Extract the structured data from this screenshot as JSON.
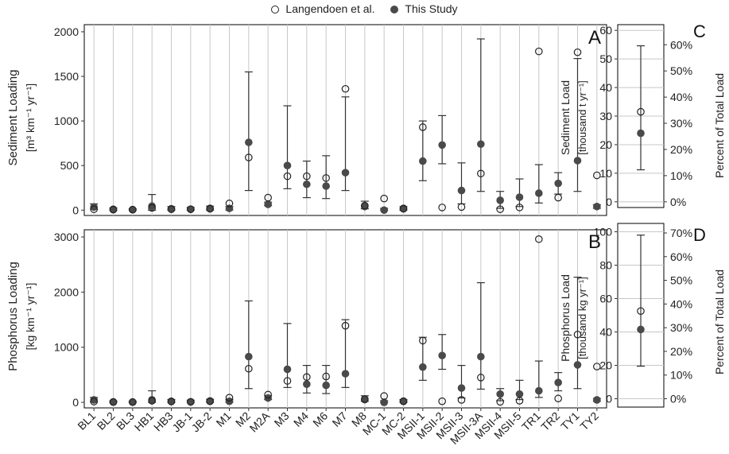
{
  "legend": {
    "open_label": "Langendoen et al.",
    "filled_label": "This Study"
  },
  "panels": {
    "A": {
      "letter": "A",
      "ylabel_line1": "Sediment Loading",
      "ylabel_line2": "[m³ km⁻¹ yr⁻¹]"
    },
    "B": {
      "letter": "B",
      "ylabel_line1": "Phosphorus Loading",
      "ylabel_line2": "[kg km⁻¹ yr⁻¹]"
    },
    "C": {
      "letter": "C",
      "ylabel_line1": "Sediment Load",
      "ylabel_line2": "[thousand t yr⁻¹]",
      "ylabel_right": "Percent of Total Load"
    },
    "D": {
      "letter": "D",
      "ylabel_line1": "Phosphorus Load",
      "ylabel_line2": "[thousand kg yr⁻¹]",
      "ylabel_right": "Percent of Total Load"
    }
  },
  "chart_data": [
    {
      "panel": "A",
      "type": "scatter",
      "categories": [
        "BL1",
        "BL2",
        "BL3",
        "HB1",
        "HB3",
        "JB-1",
        "JB-2",
        "M1",
        "M2",
        "M2A",
        "M3",
        "M4",
        "M6",
        "M7",
        "M8",
        "MC-1",
        "MC-2",
        "MSII-1",
        "MSII-2",
        "MSII-3",
        "MSII-3A",
        "MSII-4",
        "MSII-5",
        "TR1",
        "TR2",
        "TY1",
        "TY2"
      ],
      "ylim": [
        -60,
        2080
      ],
      "yticks": [
        0,
        500,
        1000,
        1500,
        2000
      ],
      "series": [
        {
          "name": "Langendoen et al.",
          "marker": "open",
          "values": [
            10,
            5,
            5,
            25,
            10,
            10,
            15,
            75,
            590,
            140,
            380,
            380,
            360,
            1360,
            50,
            130,
            15,
            930,
            30,
            35,
            410,
            10,
            30,
            1780,
            140,
            1770,
            390
          ]
        },
        {
          "name": "This Study",
          "marker": "filled",
          "values": [
            35,
            10,
            5,
            45,
            15,
            10,
            20,
            20,
            760,
            65,
            500,
            290,
            270,
            420,
            40,
            0,
            20,
            550,
            730,
            220,
            740,
            110,
            145,
            190,
            300,
            555,
            40
          ]
        },
        {
          "name": "This Study error low",
          "values": [
            10,
            0,
            0,
            0,
            0,
            0,
            0,
            0,
            220,
            50,
            240,
            140,
            130,
            220,
            15,
            0,
            0,
            330,
            520,
            70,
            210,
            20,
            40,
            80,
            180,
            210,
            20
          ]
        },
        {
          "name": "This Study error high",
          "values": [
            70,
            25,
            15,
            175,
            40,
            30,
            45,
            40,
            1550,
            90,
            1170,
            550,
            610,
            1270,
            100,
            20,
            40,
            1000,
            1060,
            530,
            1920,
            210,
            350,
            510,
            420,
            1700,
            60
          ]
        }
      ]
    },
    {
      "panel": "B",
      "type": "scatter",
      "categories": [
        "BL1",
        "BL2",
        "BL3",
        "HB1",
        "HB3",
        "JB-1",
        "JB-2",
        "M1",
        "M2",
        "M2A",
        "M3",
        "M4",
        "M6",
        "M7",
        "M8",
        "MC-1",
        "MC-2",
        "MSII-1",
        "MSII-2",
        "MSII-3",
        "MSII-3A",
        "MSII-4",
        "MSII-5",
        "TR1",
        "TR2",
        "TY1",
        "TY2"
      ],
      "ylim": [
        -100,
        3130
      ],
      "yticks": [
        0,
        1000,
        2000,
        3000
      ],
      "series": [
        {
          "name": "Langendoen et al.",
          "marker": "open",
          "values": [
            15,
            5,
            5,
            30,
            15,
            10,
            20,
            85,
            610,
            140,
            390,
            460,
            470,
            1390,
            60,
            115,
            20,
            1120,
            20,
            45,
            450,
            10,
            30,
            2960,
            70,
            1230,
            650
          ]
        },
        {
          "name": "This Study",
          "marker": "filled",
          "values": [
            45,
            10,
            5,
            45,
            20,
            10,
            25,
            20,
            830,
            80,
            600,
            330,
            310,
            520,
            50,
            0,
            20,
            640,
            850,
            260,
            830,
            150,
            150,
            210,
            360,
            680,
            45
          ]
        },
        {
          "name": "This Study error low",
          "values": [
            10,
            0,
            0,
            0,
            0,
            0,
            0,
            0,
            250,
            50,
            270,
            170,
            160,
            270,
            20,
            0,
            0,
            400,
            600,
            80,
            240,
            30,
            50,
            90,
            210,
            250,
            20
          ]
        },
        {
          "name": "This Study error high",
          "values": [
            90,
            25,
            20,
            210,
            50,
            40,
            55,
            50,
            1840,
            120,
            1430,
            670,
            670,
            1500,
            120,
            30,
            50,
            1180,
            1230,
            670,
            2170,
            250,
            400,
            750,
            540,
            2270,
            70
          ]
        }
      ]
    },
    {
      "panel": "C",
      "type": "scatter",
      "ylim": [
        -2,
        62
      ],
      "yticks": [
        0,
        10,
        20,
        30,
        40,
        50,
        60
      ],
      "right_ticks": [
        "0%",
        "10%",
        "20%",
        "30%",
        "40%",
        "50%",
        "60%"
      ],
      "series": [
        {
          "name": "Langendoen et al.",
          "marker": "open",
          "values": [
            31.5
          ]
        },
        {
          "name": "This Study",
          "marker": "filled",
          "values": [
            24
          ],
          "error": [
            11.2,
            54.6
          ]
        }
      ]
    },
    {
      "panel": "D",
      "type": "scatter",
      "ylim": [
        -5,
        105
      ],
      "yticks": [
        0,
        20,
        40,
        60,
        80,
        100
      ],
      "right_ticks": [
        "0%",
        "10%",
        "20%",
        "30%",
        "40%",
        "50%",
        "60%",
        "70%"
      ],
      "series": [
        {
          "name": "Langendoen et al.",
          "marker": "open",
          "values": [
            52.5
          ]
        },
        {
          "name": "This Study",
          "marker": "filled",
          "values": [
            41.5
          ],
          "error": [
            19.5,
            98
          ]
        }
      ]
    }
  ]
}
